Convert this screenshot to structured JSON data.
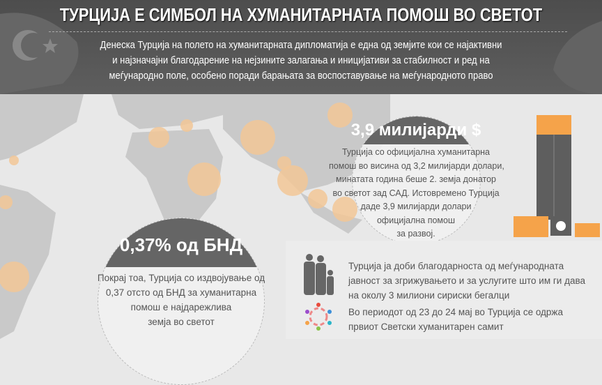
{
  "header": {
    "title": "ТУРЦИЈА Е СИМБОЛ НА ХУМАНИТАРНАТА ПОМОШ ВО СВЕТОТ",
    "intro": [
      "Денеска Турција на полето на хуманитарната дипломатија е една од земјите кои се најактивни",
      "и најзначајни благодарение на нејзините залагања и иницијативи за стабилност и ред на",
      "меѓународно поле, особено поради барањата за воспоставување на меѓународното право"
    ]
  },
  "aid": {
    "headline": "3,9 милијарди $",
    "lines": [
      "Турција со официјална хуманитарна",
      "помош во висина од 3,2 милијарди долари,",
      "минатата година беше 2. земја донатор",
      "во светот зад САД. Истовремено Турција",
      "даде 3,9 милијарди долари",
      "официјална помош",
      "за развој."
    ]
  },
  "gni": {
    "headline": "0,37% од БНД",
    "lines": [
      "Покрај тоа, Турција со издвојување од",
      "0,37 отсто од БНД за хуманитарна",
      "помош е најдарежлива",
      "земја во светот"
    ]
  },
  "facts": [
    {
      "icon": "refugee-family-icon",
      "lines": [
        "Турција ја доби благодарноста од меѓународната",
        "јавност за згрижувањето и за услугите што им ги дава",
        "на околу 3 милиони сириски бегалци"
      ]
    },
    {
      "icon": "summit-people-circle-icon",
      "lines": [
        "Во периодот од 23 до 24 мај во Турција се одржа",
        "првиот Светски хуманитарен самит"
      ]
    }
  ],
  "colors": {
    "header": "#555555",
    "accent": "#f5a34a",
    "map_land": "#c9c9c9",
    "highlight": "#f2c796"
  }
}
